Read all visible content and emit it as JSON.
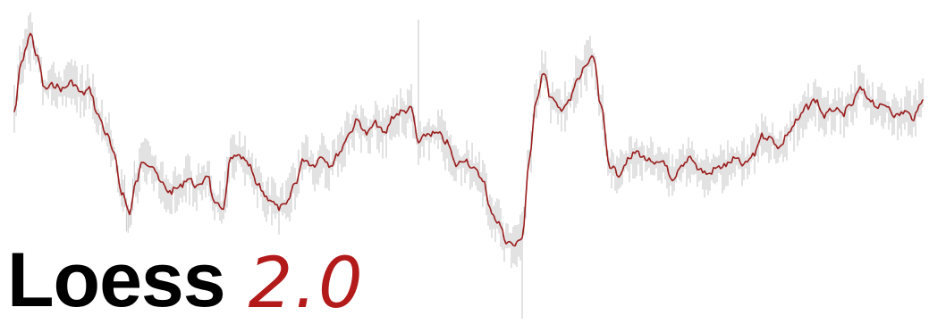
{
  "logo": {
    "word": "Loess",
    "version": "2.0"
  },
  "colors": {
    "background": "#ffffff",
    "raw_line": "#c6c6c6",
    "smooth_line": "#9b1d1d",
    "logo_text": "#000000",
    "version_text": "#b31b1b"
  }
}
